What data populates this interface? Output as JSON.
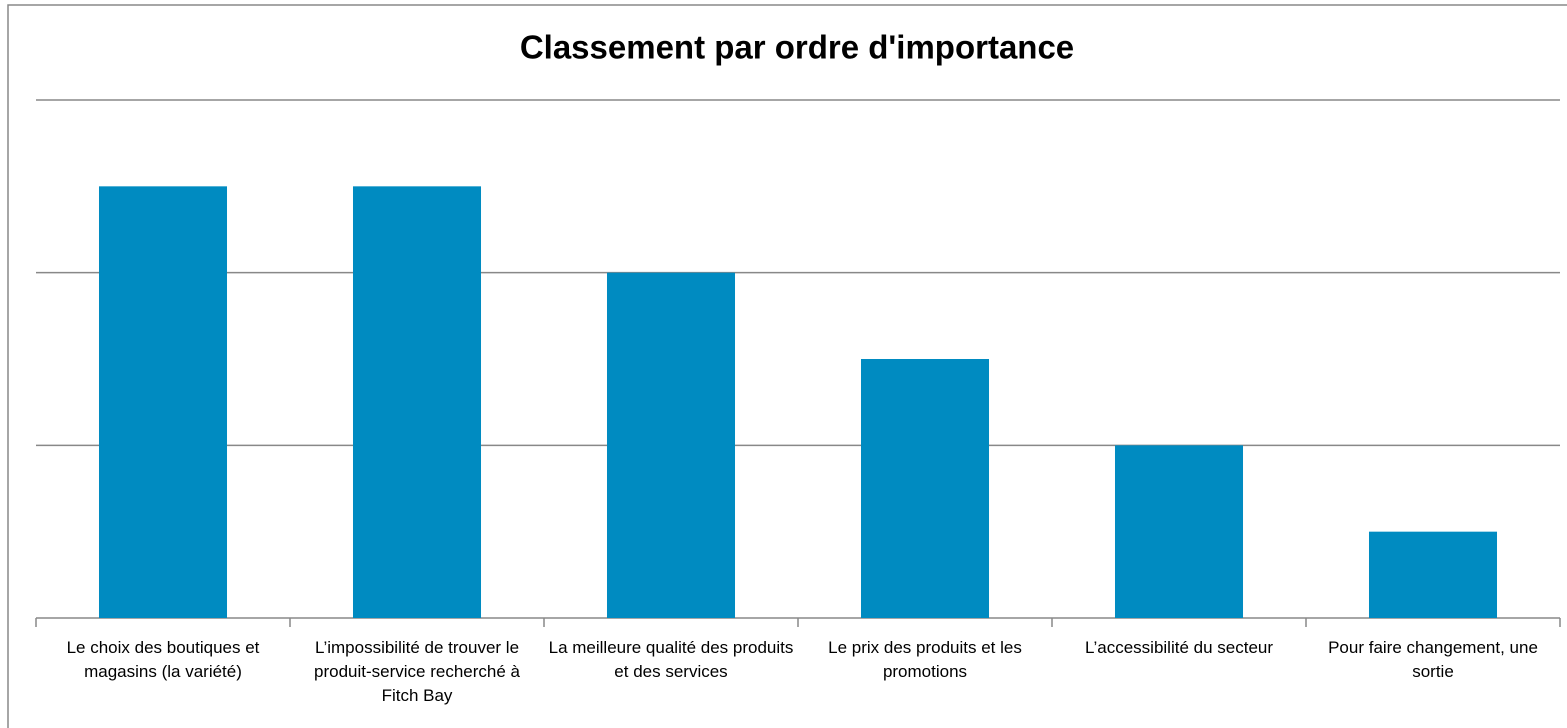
{
  "chart_data": {
    "type": "bar",
    "title": "Classement par ordre d'importance",
    "categories": [
      "Le choix des boutiques et magasins (la variété)",
      "L’impossibilité de trouver le produit-service recherché à Fitch Bay",
      "La meilleure qualité des produits et des services",
      "Le prix des produits et les promotions",
      "L’accessibilité du secteur",
      "Pour faire changement, une sortie"
    ],
    "values": [
      5,
      5,
      4,
      3,
      2,
      1
    ],
    "color": "#008bc1",
    "ylim": [
      0,
      6
    ],
    "yticks": [
      0,
      2,
      4,
      6
    ],
    "grid": true
  }
}
